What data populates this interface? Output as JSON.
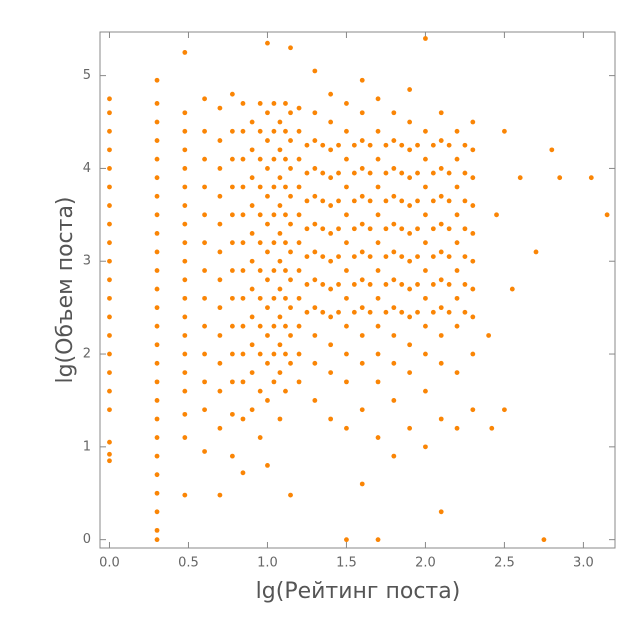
{
  "chart_data": {
    "type": "scatter",
    "xlabel": "lg(Рейтинг поста)",
    "ylabel": "lg(Объем поста)",
    "color": "#fa8505",
    "xlim": [
      -0.06,
      3.2
    ],
    "ylim": [
      -0.09,
      5.47
    ],
    "xticks": [
      {
        "value": 0,
        "label": "0.0"
      },
      0.5,
      {
        "value": 1,
        "label": "1.0"
      },
      1.5,
      {
        "value": 2,
        "label": "2.0"
      },
      2.5,
      {
        "value": 3,
        "label": "3.0"
      }
    ],
    "yticks": [
      0,
      1,
      2,
      3,
      4,
      5
    ],
    "x": [
      0,
      0,
      0,
      0,
      0,
      0,
      0,
      0,
      0,
      0,
      0,
      0,
      0,
      0,
      0,
      0,
      0,
      0,
      0,
      0,
      0,
      0.301,
      0.301,
      0.301,
      0.301,
      0.301,
      0.301,
      0.301,
      0.301,
      0.301,
      0.301,
      0.301,
      0.301,
      0.301,
      0.301,
      0.301,
      0.301,
      0.301,
      0.301,
      0.301,
      0.301,
      0.301,
      0.301,
      0.301,
      0.301,
      0.301,
      0.301,
      0.477,
      0.477,
      0.477,
      0.477,
      0.477,
      0.477,
      0.477,
      0.477,
      0.477,
      0.477,
      0.477,
      0.477,
      0.477,
      0.477,
      0.477,
      0.477,
      0.477,
      0.477,
      0.477,
      0.477,
      0.602,
      0.602,
      0.602,
      0.602,
      0.602,
      0.602,
      0.602,
      0.602,
      0.602,
      0.602,
      0.602,
      0.602,
      0.602,
      0.699,
      0.699,
      0.699,
      0.699,
      0.699,
      0.699,
      0.699,
      0.699,
      0.699,
      0.699,
      0.699,
      0.699,
      0.699,
      0.778,
      0.778,
      0.778,
      0.778,
      0.778,
      0.778,
      0.778,
      0.778,
      0.778,
      0.778,
      0.778,
      0.778,
      0.778,
      0.845,
      0.845,
      0.845,
      0.845,
      0.845,
      0.845,
      0.845,
      0.845,
      0.845,
      0.845,
      0.845,
      0.845,
      0.845,
      0.903,
      0.903,
      0.903,
      0.903,
      0.903,
      0.903,
      0.903,
      0.903,
      0.903,
      0.903,
      0.903,
      0.954,
      0.954,
      0.954,
      0.954,
      0.954,
      0.954,
      0.954,
      0.954,
      0.954,
      0.954,
      0.954,
      0.954,
      1,
      1,
      1,
      1,
      1,
      1,
      1,
      1,
      1,
      1,
      1,
      1,
      1,
      1.041,
      1.041,
      1.041,
      1.041,
      1.041,
      1.041,
      1.041,
      1.041,
      1.041,
      1.041,
      1.041,
      1.079,
      1.079,
      1.079,
      1.079,
      1.079,
      1.079,
      1.079,
      1.079,
      1.079,
      1.079,
      1.079,
      1.114,
      1.114,
      1.114,
      1.114,
      1.114,
      1.114,
      1.114,
      1.114,
      1.114,
      1.114,
      1.114,
      1.146,
      1.146,
      1.146,
      1.146,
      1.146,
      1.146,
      1.146,
      1.146,
      1.146,
      1.146,
      1.146,
      1.146,
      1.2,
      1.2,
      1.2,
      1.2,
      1.2,
      1.2,
      1.2,
      1.2,
      1.2,
      1.2,
      1.2,
      1.3,
      1.3,
      1.3,
      1.3,
      1.3,
      1.3,
      1.3,
      1.3,
      1.3,
      1.3,
      1.3,
      1.3,
      1.4,
      1.4,
      1.4,
      1.4,
      1.4,
      1.4,
      1.4,
      1.4,
      1.4,
      1.4,
      1.4,
      1.4,
      1.5,
      1.5,
      1.5,
      1.5,
      1.5,
      1.5,
      1.5,
      1.5,
      1.5,
      1.5,
      1.5,
      1.5,
      1.5,
      1.6,
      1.6,
      1.6,
      1.6,
      1.6,
      1.6,
      1.6,
      1.6,
      1.6,
      1.6,
      1.6,
      1.6,
      1.6,
      1.7,
      1.7,
      1.7,
      1.7,
      1.7,
      1.7,
      1.7,
      1.7,
      1.7,
      1.7,
      1.7,
      1.7,
      1.7,
      1.8,
      1.8,
      1.8,
      1.8,
      1.8,
      1.8,
      1.8,
      1.8,
      1.8,
      1.8,
      1.8,
      1.8,
      1.9,
      1.9,
      1.9,
      1.9,
      1.9,
      1.9,
      1.9,
      1.9,
      1.9,
      1.9,
      1.9,
      1.9,
      2,
      2,
      2,
      2,
      2,
      2,
      2,
      2,
      2,
      2,
      2,
      2,
      2.1,
      2.1,
      2.1,
      2.1,
      2.1,
      2.1,
      2.1,
      2.1,
      2.1,
      2.1,
      2.1,
      2.1,
      2.2,
      2.2,
      2.2,
      2.2,
      2.2,
      2.2,
      2.2,
      2.2,
      2.2,
      2.2,
      2.3,
      2.3,
      2.3,
      2.3,
      2.3,
      2.3,
      2.3,
      2.3,
      2.3,
      2.3,
      1.25,
      1.25,
      1.25,
      1.25,
      1.25,
      1.25,
      1.25,
      1.35,
      1.35,
      1.35,
      1.35,
      1.35,
      1.35,
      1.35,
      1.45,
      1.45,
      1.45,
      1.45,
      1.45,
      1.45,
      1.45,
      1.55,
      1.55,
      1.55,
      1.55,
      1.55,
      1.55,
      1.55,
      1.65,
      1.65,
      1.65,
      1.65,
      1.65,
      1.65,
      1.65,
      1.75,
      1.75,
      1.75,
      1.75,
      1.75,
      1.75,
      1.75,
      1.85,
      1.85,
      1.85,
      1.85,
      1.85,
      1.85,
      1.85,
      1.95,
      1.95,
      1.95,
      1.95,
      1.95,
      1.95,
      1.95,
      2.05,
      2.05,
      2.05,
      2.05,
      2.05,
      2.05,
      2.05,
      2.15,
      2.15,
      2.15,
      2.15,
      2.15,
      2.15,
      2.15,
      2.25,
      2.25,
      2.25,
      2.25,
      2.25,
      2.25,
      2.25,
      2.4,
      2.45,
      2.5,
      2.55,
      2.6,
      2.7,
      2.75,
      2.8,
      2.85,
      3.05,
      3.15,
      2.42,
      2.5
    ],
    "values": [
      0.85,
      0.92,
      1.05,
      1.4,
      1.6,
      1.8,
      2.0,
      2.2,
      2.4,
      2.6,
      2.8,
      3.0,
      3.2,
      3.4,
      3.6,
      3.8,
      4.0,
      4.2,
      4.4,
      4.6,
      4.75,
      0,
      0.1,
      0.3,
      0.5,
      0.7,
      0.9,
      1.1,
      1.3,
      1.5,
      1.7,
      1.9,
      2.1,
      2.3,
      2.5,
      2.7,
      2.9,
      3.1,
      3.3,
      3.5,
      3.7,
      3.9,
      4.1,
      4.3,
      4.5,
      4.7,
      4.95,
      0.48,
      1.1,
      1.35,
      1.6,
      1.8,
      2.0,
      2.2,
      2.4,
      2.6,
      2.8,
      3.0,
      3.2,
      3.4,
      3.6,
      3.8,
      4.0,
      4.2,
      4.4,
      4.6,
      5.25,
      0.95,
      1.4,
      1.7,
      2.0,
      2.3,
      2.6,
      2.9,
      3.2,
      3.5,
      3.8,
      4.1,
      4.4,
      4.75,
      0.48,
      1.2,
      1.6,
      1.9,
      2.2,
      2.5,
      2.8,
      3.1,
      3.4,
      3.7,
      4.0,
      4.3,
      4.65,
      0.9,
      1.35,
      1.7,
      2.0,
      2.3,
      2.6,
      2.9,
      3.2,
      3.5,
      3.8,
      4.1,
      4.4,
      4.8,
      0.72,
      1.3,
      1.7,
      2.0,
      2.3,
      2.6,
      2.9,
      3.2,
      3.5,
      3.8,
      4.1,
      4.4,
      4.7,
      1.4,
      1.8,
      2.1,
      2.4,
      2.7,
      3.0,
      3.3,
      3.6,
      3.9,
      4.2,
      4.5,
      1.1,
      1.6,
      2.0,
      2.3,
      2.6,
      2.9,
      3.2,
      3.5,
      3.8,
      4.1,
      4.4,
      4.7,
      0.8,
      1.5,
      1.9,
      2.2,
      2.5,
      2.8,
      3.1,
      3.4,
      3.7,
      4.0,
      4.3,
      4.6,
      5.35,
      1.7,
      2.0,
      2.3,
      2.6,
      2.9,
      3.2,
      3.5,
      3.8,
      4.1,
      4.4,
      4.7,
      1.3,
      1.8,
      2.1,
      2.4,
      2.7,
      3.0,
      3.3,
      3.6,
      3.9,
      4.2,
      4.5,
      1.6,
      2.0,
      2.3,
      2.6,
      2.9,
      3.2,
      3.5,
      3.8,
      4.1,
      4.4,
      4.7,
      0.48,
      1.9,
      2.2,
      2.5,
      2.8,
      3.1,
      3.4,
      3.7,
      4.0,
      4.3,
      4.6,
      5.3,
      1.7,
      2.0,
      2.3,
      2.6,
      2.9,
      3.2,
      3.5,
      3.8,
      4.1,
      4.4,
      4.65,
      1.5,
      1.9,
      2.2,
      2.5,
      2.8,
      3.1,
      3.4,
      3.7,
      4.0,
      4.3,
      4.6,
      5.05,
      1.3,
      1.8,
      2.1,
      2.4,
      2.7,
      3.0,
      3.3,
      3.6,
      3.9,
      4.2,
      4.5,
      4.8,
      0,
      1.2,
      1.7,
      2.0,
      2.3,
      2.6,
      2.9,
      3.2,
      3.5,
      3.8,
      4.1,
      4.4,
      4.7,
      0.6,
      1.4,
      1.9,
      2.2,
      2.5,
      2.8,
      3.1,
      3.4,
      3.7,
      4.0,
      4.3,
      4.6,
      4.95,
      0,
      1.1,
      1.7,
      2.0,
      2.3,
      2.6,
      2.9,
      3.2,
      3.5,
      3.8,
      4.1,
      4.4,
      4.75,
      0.9,
      1.5,
      1.9,
      2.2,
      2.5,
      2.8,
      3.1,
      3.4,
      3.7,
      4.0,
      4.3,
      4.6,
      1.2,
      1.8,
      2.1,
      2.4,
      2.7,
      3.0,
      3.3,
      3.6,
      3.9,
      4.2,
      4.5,
      4.85,
      1.0,
      1.6,
      2.0,
      2.3,
      2.6,
      2.9,
      3.2,
      3.5,
      3.8,
      4.1,
      4.4,
      5.4,
      0.3,
      1.3,
      1.9,
      2.2,
      2.5,
      2.8,
      3.1,
      3.4,
      3.7,
      4.0,
      4.3,
      4.6,
      1.2,
      1.8,
      2.3,
      2.6,
      2.9,
      3.2,
      3.5,
      3.8,
      4.1,
      4.4,
      1.4,
      2.0,
      2.4,
      2.7,
      3.0,
      3.3,
      3.6,
      3.9,
      4.2,
      4.5,
      2.45,
      2.75,
      3.05,
      3.35,
      3.65,
      3.95,
      4.25,
      2.45,
      2.75,
      3.05,
      3.35,
      3.65,
      3.95,
      4.25,
      2.45,
      2.75,
      3.05,
      3.35,
      3.65,
      3.95,
      4.25,
      2.45,
      2.75,
      3.05,
      3.35,
      3.65,
      3.95,
      4.25,
      2.45,
      2.75,
      3.05,
      3.35,
      3.65,
      3.95,
      4.25,
      2.45,
      2.75,
      3.05,
      3.35,
      3.65,
      3.95,
      4.25,
      2.45,
      2.75,
      3.05,
      3.35,
      3.65,
      3.95,
      4.25,
      2.45,
      2.75,
      3.05,
      3.35,
      3.65,
      3.95,
      4.25,
      2.45,
      2.75,
      3.05,
      3.35,
      3.65,
      3.95,
      4.25,
      2.45,
      2.75,
      3.05,
      3.35,
      3.65,
      3.95,
      4.25,
      2.45,
      2.75,
      3.05,
      3.35,
      3.65,
      3.95,
      4.25,
      2.2,
      3.5,
      4.4,
      2.7,
      3.9,
      3.1,
      0,
      4.2,
      3.9,
      3.9,
      3.5,
      1.2,
      1.4
    ]
  }
}
